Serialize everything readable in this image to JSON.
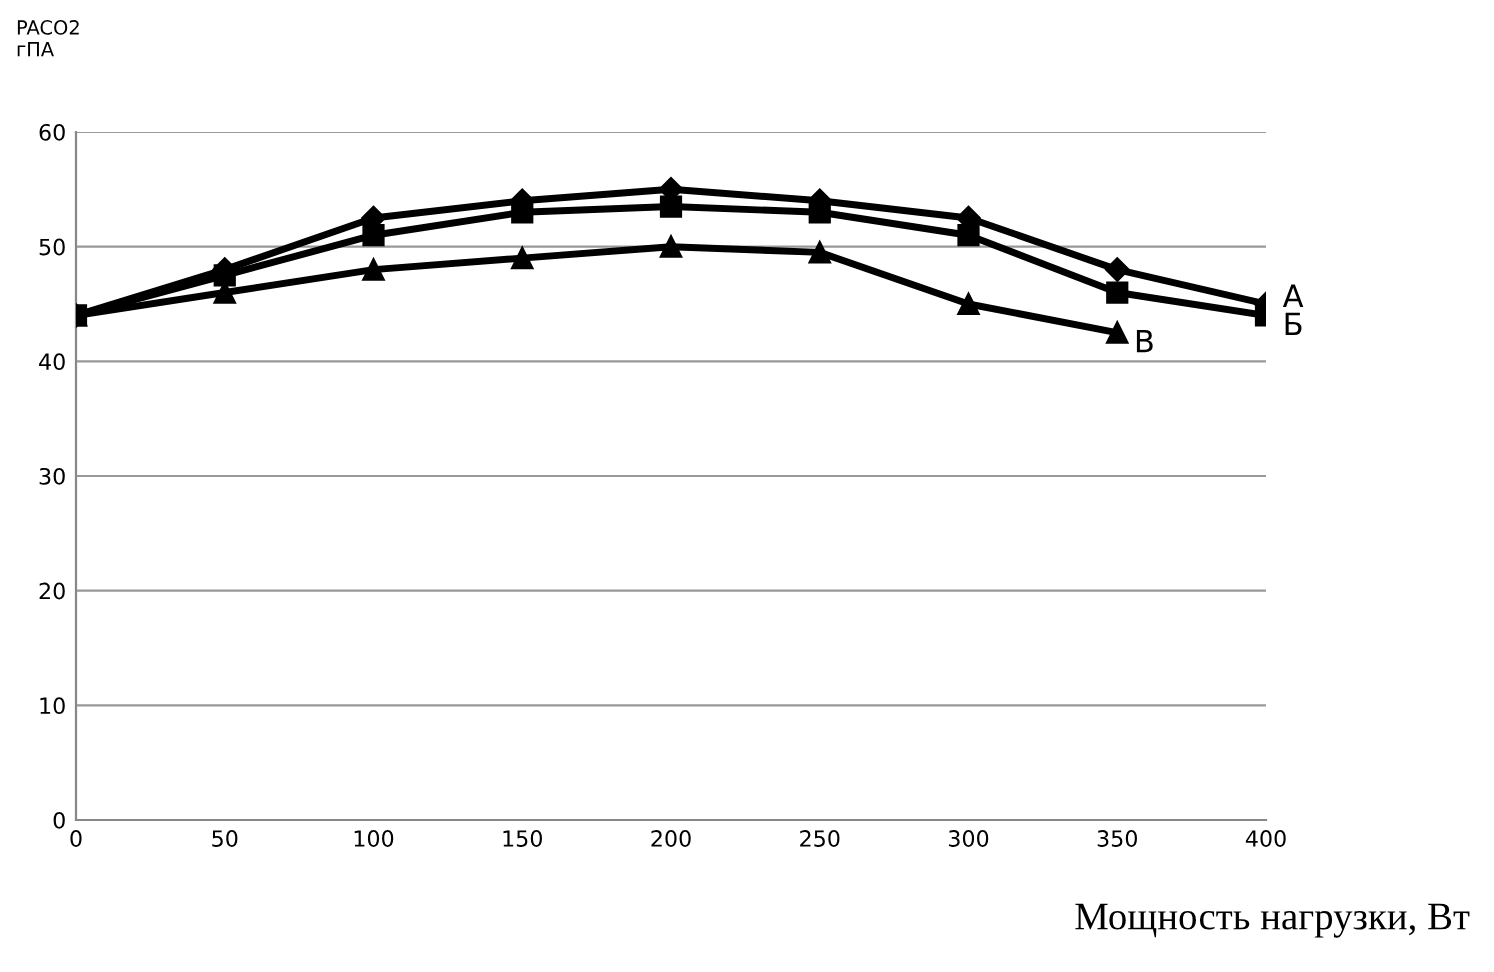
{
  "chart_data": {
    "type": "line",
    "ylabel": "PACO2\nгПА",
    "xlabel": "Мощность нагрузки, Вт",
    "xlim": [
      0,
      400
    ],
    "xticks": [
      0,
      50,
      100,
      150,
      200,
      250,
      300,
      350,
      400
    ],
    "ylim": [
      0,
      60
    ],
    "yticks": [
      0,
      10,
      20,
      30,
      40,
      50,
      60
    ],
    "grid": "y",
    "legend": false,
    "line_style": "solid",
    "series": [
      {
        "name": "А",
        "color": "#000000",
        "marker": "diamond",
        "x": [
          0,
          50,
          100,
          150,
          200,
          250,
          300,
          350,
          400
        ],
        "values": [
          44,
          48,
          52.5,
          54,
          55,
          54,
          52.5,
          48,
          45
        ]
      },
      {
        "name": "Б",
        "color": "#000000",
        "marker": "square",
        "x": [
          0,
          50,
          100,
          150,
          200,
          250,
          300,
          350,
          400
        ],
        "values": [
          44,
          47.5,
          51,
          53,
          53.5,
          53,
          51,
          46,
          44
        ]
      },
      {
        "name": "В",
        "color": "#000000",
        "marker": "triangle",
        "x": [
          0,
          50,
          100,
          150,
          200,
          250,
          300,
          350
        ],
        "values": [
          44,
          46,
          48,
          49,
          50,
          49.5,
          45,
          42.5
        ]
      }
    ]
  }
}
